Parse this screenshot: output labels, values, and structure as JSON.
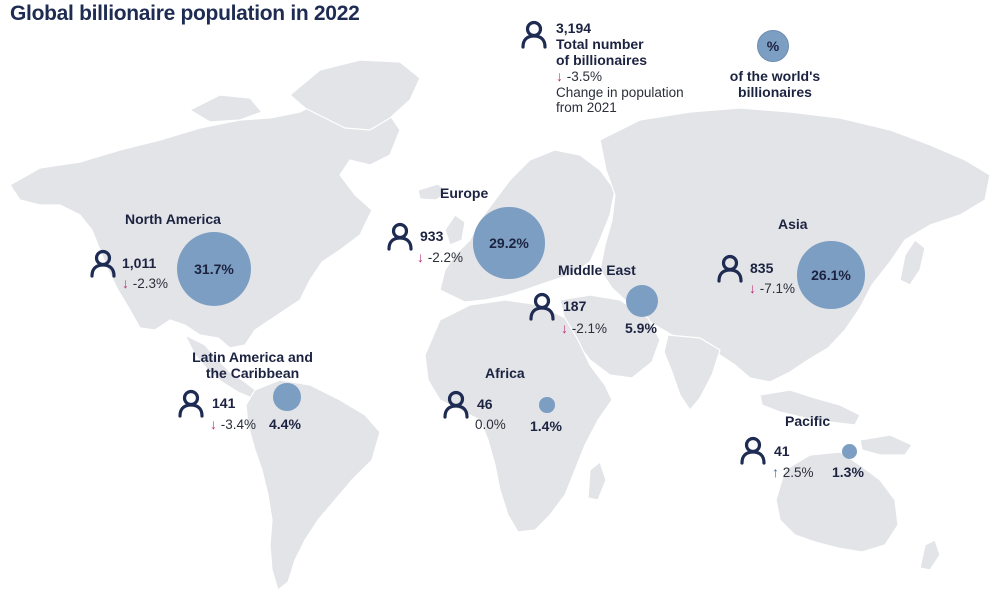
{
  "title": "Global billionaire population in 2022",
  "colors": {
    "land": "#e3e4e8",
    "bubble": "#7d9ec3",
    "decrease_arrow": "#c0307a",
    "increase_arrow": "#2f6fb0",
    "text": "#1c2340"
  },
  "legend": {
    "icon": "person-icon",
    "total": "3,194",
    "total_label_1": "Total number",
    "total_label_2": "of billionaires",
    "change_arrow": "↓",
    "change_value": "-3.5%",
    "change_label_1": "Change in population",
    "change_label_2": "from 2021",
    "pct_symbol": "%",
    "pct_label_1": "of the world's",
    "pct_label_2": "billionaires"
  },
  "regions": {
    "north_america": {
      "name": "North America",
      "count": "1,011",
      "arrow": "↓",
      "change": "-2.3%",
      "share": "31.7%",
      "share_value": 31.7
    },
    "europe": {
      "name": "Europe",
      "count": "933",
      "arrow": "↓",
      "change": "-2.2%",
      "share": "29.2%",
      "share_value": 29.2
    },
    "asia": {
      "name": "Asia",
      "count": "835",
      "arrow": "↓",
      "change": "-7.1%",
      "share": "26.1%",
      "share_value": 26.1
    },
    "middle_east": {
      "name": "Middle East",
      "count": "187",
      "arrow": "↓",
      "change": "-2.1%",
      "share": "5.9%",
      "share_value": 5.9
    },
    "latin_america": {
      "name_1": "Latin America and",
      "name_2": "the Caribbean",
      "count": "141",
      "arrow": "↓",
      "change": "-3.4%",
      "share": "4.4%",
      "share_value": 4.4
    },
    "africa": {
      "name": "Africa",
      "count": "46",
      "arrow": "",
      "change": "0.0%",
      "share": "1.4%",
      "share_value": 1.4
    },
    "pacific": {
      "name": "Pacific",
      "count": "41",
      "arrow": "↑",
      "change": "2.5%",
      "share": "1.3%",
      "share_value": 1.3
    }
  }
}
